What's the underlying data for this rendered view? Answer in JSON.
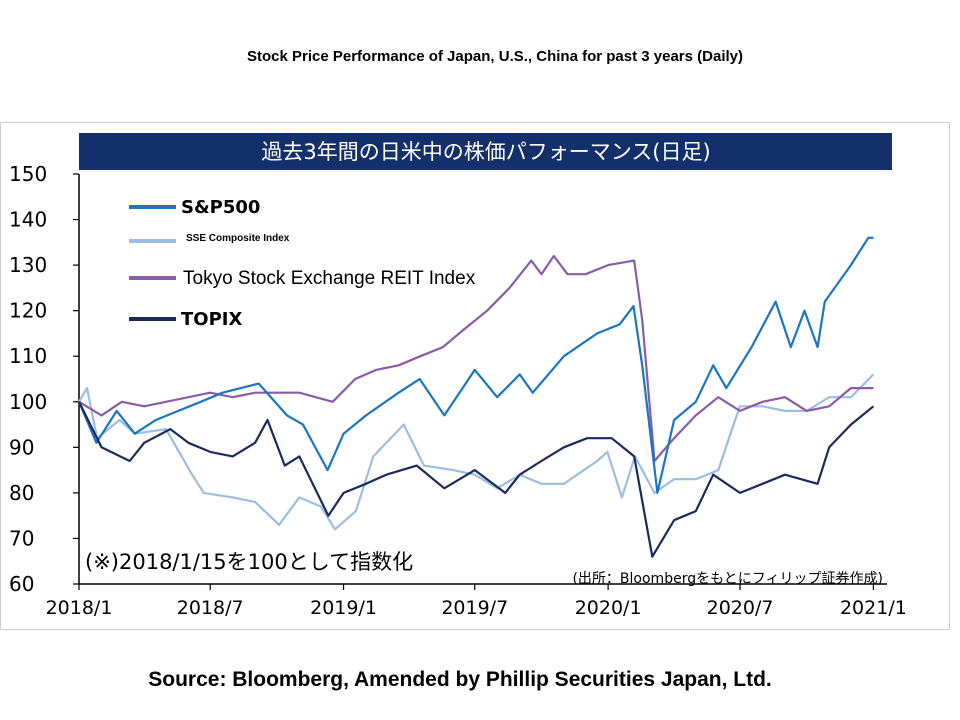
{
  "slide": {
    "title": "Stock Price Performance of Japan, U.S., China for past 3 years (Daily)",
    "source": "Source: Bloomberg, Amended by Phillip Securities Japan, Ltd."
  },
  "chart_data": {
    "type": "line",
    "title": "過去3年間の日米中の株価パフォーマンス(日足)",
    "note": "(※)2018/1/15を100として指数化",
    "source_note": "(出所：Bloombergをもとにフィリップ証券作成)",
    "xlabel": "",
    "ylabel": "",
    "ylim": [
      60,
      150
    ],
    "yticks": [
      60,
      70,
      80,
      90,
      100,
      110,
      120,
      130,
      140,
      150
    ],
    "xlim": [
      "2018-01-15",
      "2021-01-31"
    ],
    "xticks": [
      "2018/1",
      "2018/7",
      "2019/1",
      "2019/7",
      "2020/1",
      "2020/7",
      "2021/1"
    ],
    "grid": false,
    "legend_position": "top-left",
    "colors": {
      "title_bar": "#14306b",
      "sp500": "#1a75c2",
      "sse": "#9dbde3",
      "reit": "#8a5ca8",
      "topix": "#1b2a5e"
    },
    "series": [
      {
        "name": "S&P500",
        "color": "#1a75c2",
        "points": [
          [
            "2018-01-15",
            100
          ],
          [
            "2018-02-08",
            91
          ],
          [
            "2018-03-08",
            98
          ],
          [
            "2018-04-02",
            93
          ],
          [
            "2018-05-01",
            96
          ],
          [
            "2018-06-01",
            98
          ],
          [
            "2018-07-02",
            100
          ],
          [
            "2018-08-01",
            102
          ],
          [
            "2018-09-20",
            104
          ],
          [
            "2018-10-29",
            97
          ],
          [
            "2018-11-20",
            95
          ],
          [
            "2018-12-24",
            85
          ],
          [
            "2019-01-15",
            93
          ],
          [
            "2019-02-15",
            97
          ],
          [
            "2019-04-01",
            102
          ],
          [
            "2019-04-30",
            105
          ],
          [
            "2019-06-03",
            97
          ],
          [
            "2019-07-15",
            107
          ],
          [
            "2019-08-15",
            101
          ],
          [
            "2019-09-15",
            106
          ],
          [
            "2019-10-03",
            102
          ],
          [
            "2019-11-15",
            110
          ],
          [
            "2019-12-31",
            115
          ],
          [
            "2020-01-31",
            117
          ],
          [
            "2020-02-19",
            121
          ],
          [
            "2020-03-02",
            108
          ],
          [
            "2020-03-23",
            80
          ],
          [
            "2020-04-15",
            96
          ],
          [
            "2020-05-15",
            100
          ],
          [
            "2020-06-08",
            108
          ],
          [
            "2020-06-26",
            103
          ],
          [
            "2020-07-31",
            112
          ],
          [
            "2020-09-02",
            122
          ],
          [
            "2020-09-23",
            112
          ],
          [
            "2020-10-12",
            120
          ],
          [
            "2020-10-30",
            112
          ],
          [
            "2020-11-09",
            122
          ],
          [
            "2020-12-15",
            130
          ],
          [
            "2021-01-08",
            136
          ],
          [
            "2021-01-15",
            136
          ]
        ]
      },
      {
        "name": "SSE Composite Index",
        "color": "#9dbde3",
        "points": [
          [
            "2018-01-15",
            100
          ],
          [
            "2018-01-26",
            103
          ],
          [
            "2018-02-09",
            92
          ],
          [
            "2018-03-12",
            96
          ],
          [
            "2018-04-02",
            93
          ],
          [
            "2018-05-15",
            94
          ],
          [
            "2018-06-20",
            84
          ],
          [
            "2018-07-06",
            80
          ],
          [
            "2018-08-15",
            79
          ],
          [
            "2018-09-15",
            78
          ],
          [
            "2018-10-18",
            73
          ],
          [
            "2018-11-15",
            79
          ],
          [
            "2018-12-15",
            77
          ],
          [
            "2019-01-03",
            72
          ],
          [
            "2019-02-01",
            76
          ],
          [
            "2019-02-25",
            88
          ],
          [
            "2019-04-08",
            95
          ],
          [
            "2019-05-06",
            86
          ],
          [
            "2019-06-15",
            85
          ],
          [
            "2019-07-15",
            84
          ],
          [
            "2019-08-15",
            81
          ],
          [
            "2019-09-15",
            84
          ],
          [
            "2019-10-15",
            82
          ],
          [
            "2019-11-15",
            82
          ],
          [
            "2019-12-31",
            87
          ],
          [
            "2020-01-14",
            89
          ],
          [
            "2020-02-03",
            79
          ],
          [
            "2020-02-21",
            88
          ],
          [
            "2020-03-19",
            80
          ],
          [
            "2020-04-15",
            83
          ],
          [
            "2020-05-15",
            83
          ],
          [
            "2020-06-15",
            85
          ],
          [
            "2020-07-06",
            95
          ],
          [
            "2020-07-15",
            99
          ],
          [
            "2020-08-15",
            99
          ],
          [
            "2020-09-15",
            98
          ],
          [
            "2020-10-15",
            98
          ],
          [
            "2020-11-15",
            101
          ],
          [
            "2020-12-15",
            101
          ],
          [
            "2021-01-15",
            106
          ]
        ]
      },
      {
        "name": "Tokyo Stock Exchange REIT Index",
        "color": "#8a5ca8",
        "points": [
          [
            "2018-01-15",
            100
          ],
          [
            "2018-02-15",
            97
          ],
          [
            "2018-03-15",
            100
          ],
          [
            "2018-04-15",
            99
          ],
          [
            "2018-05-15",
            100
          ],
          [
            "2018-06-15",
            101
          ],
          [
            "2018-07-15",
            102
          ],
          [
            "2018-08-15",
            101
          ],
          [
            "2018-09-15",
            102
          ],
          [
            "2018-10-15",
            102
          ],
          [
            "2018-11-15",
            102
          ],
          [
            "2018-12-31",
            100
          ],
          [
            "2019-01-31",
            105
          ],
          [
            "2019-03-01",
            107
          ],
          [
            "2019-04-01",
            108
          ],
          [
            "2019-05-01",
            110
          ],
          [
            "2019-06-01",
            112
          ],
          [
            "2019-07-01",
            116
          ],
          [
            "2019-08-01",
            120
          ],
          [
            "2019-09-01",
            125
          ],
          [
            "2019-10-01",
            131
          ],
          [
            "2019-10-15",
            128
          ],
          [
            "2019-11-01",
            132
          ],
          [
            "2019-11-20",
            128
          ],
          [
            "2019-12-15",
            128
          ],
          [
            "2020-01-15",
            130
          ],
          [
            "2020-02-20",
            131
          ],
          [
            "2020-03-02",
            118
          ],
          [
            "2020-03-19",
            87
          ],
          [
            "2020-04-15",
            92
          ],
          [
            "2020-05-15",
            97
          ],
          [
            "2020-06-15",
            101
          ],
          [
            "2020-07-15",
            98
          ],
          [
            "2020-08-15",
            100
          ],
          [
            "2020-09-15",
            101
          ],
          [
            "2020-10-15",
            98
          ],
          [
            "2020-11-15",
            99
          ],
          [
            "2020-12-15",
            103
          ],
          [
            "2021-01-15",
            103
          ]
        ]
      },
      {
        "name": "TOPIX",
        "color": "#1b2a5e",
        "points": [
          [
            "2018-01-15",
            100
          ],
          [
            "2018-02-15",
            90
          ],
          [
            "2018-03-26",
            87
          ],
          [
            "2018-04-15",
            91
          ],
          [
            "2018-05-21",
            94
          ],
          [
            "2018-06-15",
            91
          ],
          [
            "2018-07-15",
            89
          ],
          [
            "2018-08-15",
            88
          ],
          [
            "2018-09-15",
            91
          ],
          [
            "2018-10-02",
            96
          ],
          [
            "2018-10-26",
            86
          ],
          [
            "2018-11-15",
            88
          ],
          [
            "2018-12-25",
            75
          ],
          [
            "2019-01-15",
            80
          ],
          [
            "2019-02-15",
            82
          ],
          [
            "2019-03-15",
            84
          ],
          [
            "2019-04-26",
            86
          ],
          [
            "2019-06-03",
            81
          ],
          [
            "2019-07-15",
            85
          ],
          [
            "2019-08-26",
            80
          ],
          [
            "2019-09-15",
            84
          ],
          [
            "2019-10-15",
            87
          ],
          [
            "2019-11-15",
            90
          ],
          [
            "2019-12-17",
            92
          ],
          [
            "2020-01-20",
            92
          ],
          [
            "2020-02-20",
            88
          ],
          [
            "2020-03-16",
            66
          ],
          [
            "2020-04-15",
            74
          ],
          [
            "2020-05-15",
            76
          ],
          [
            "2020-06-08",
            84
          ],
          [
            "2020-07-15",
            80
          ],
          [
            "2020-08-15",
            82
          ],
          [
            "2020-09-15",
            84
          ],
          [
            "2020-10-30",
            82
          ],
          [
            "2020-11-15",
            90
          ],
          [
            "2020-12-15",
            95
          ],
          [
            "2021-01-15",
            99
          ]
        ]
      }
    ]
  }
}
